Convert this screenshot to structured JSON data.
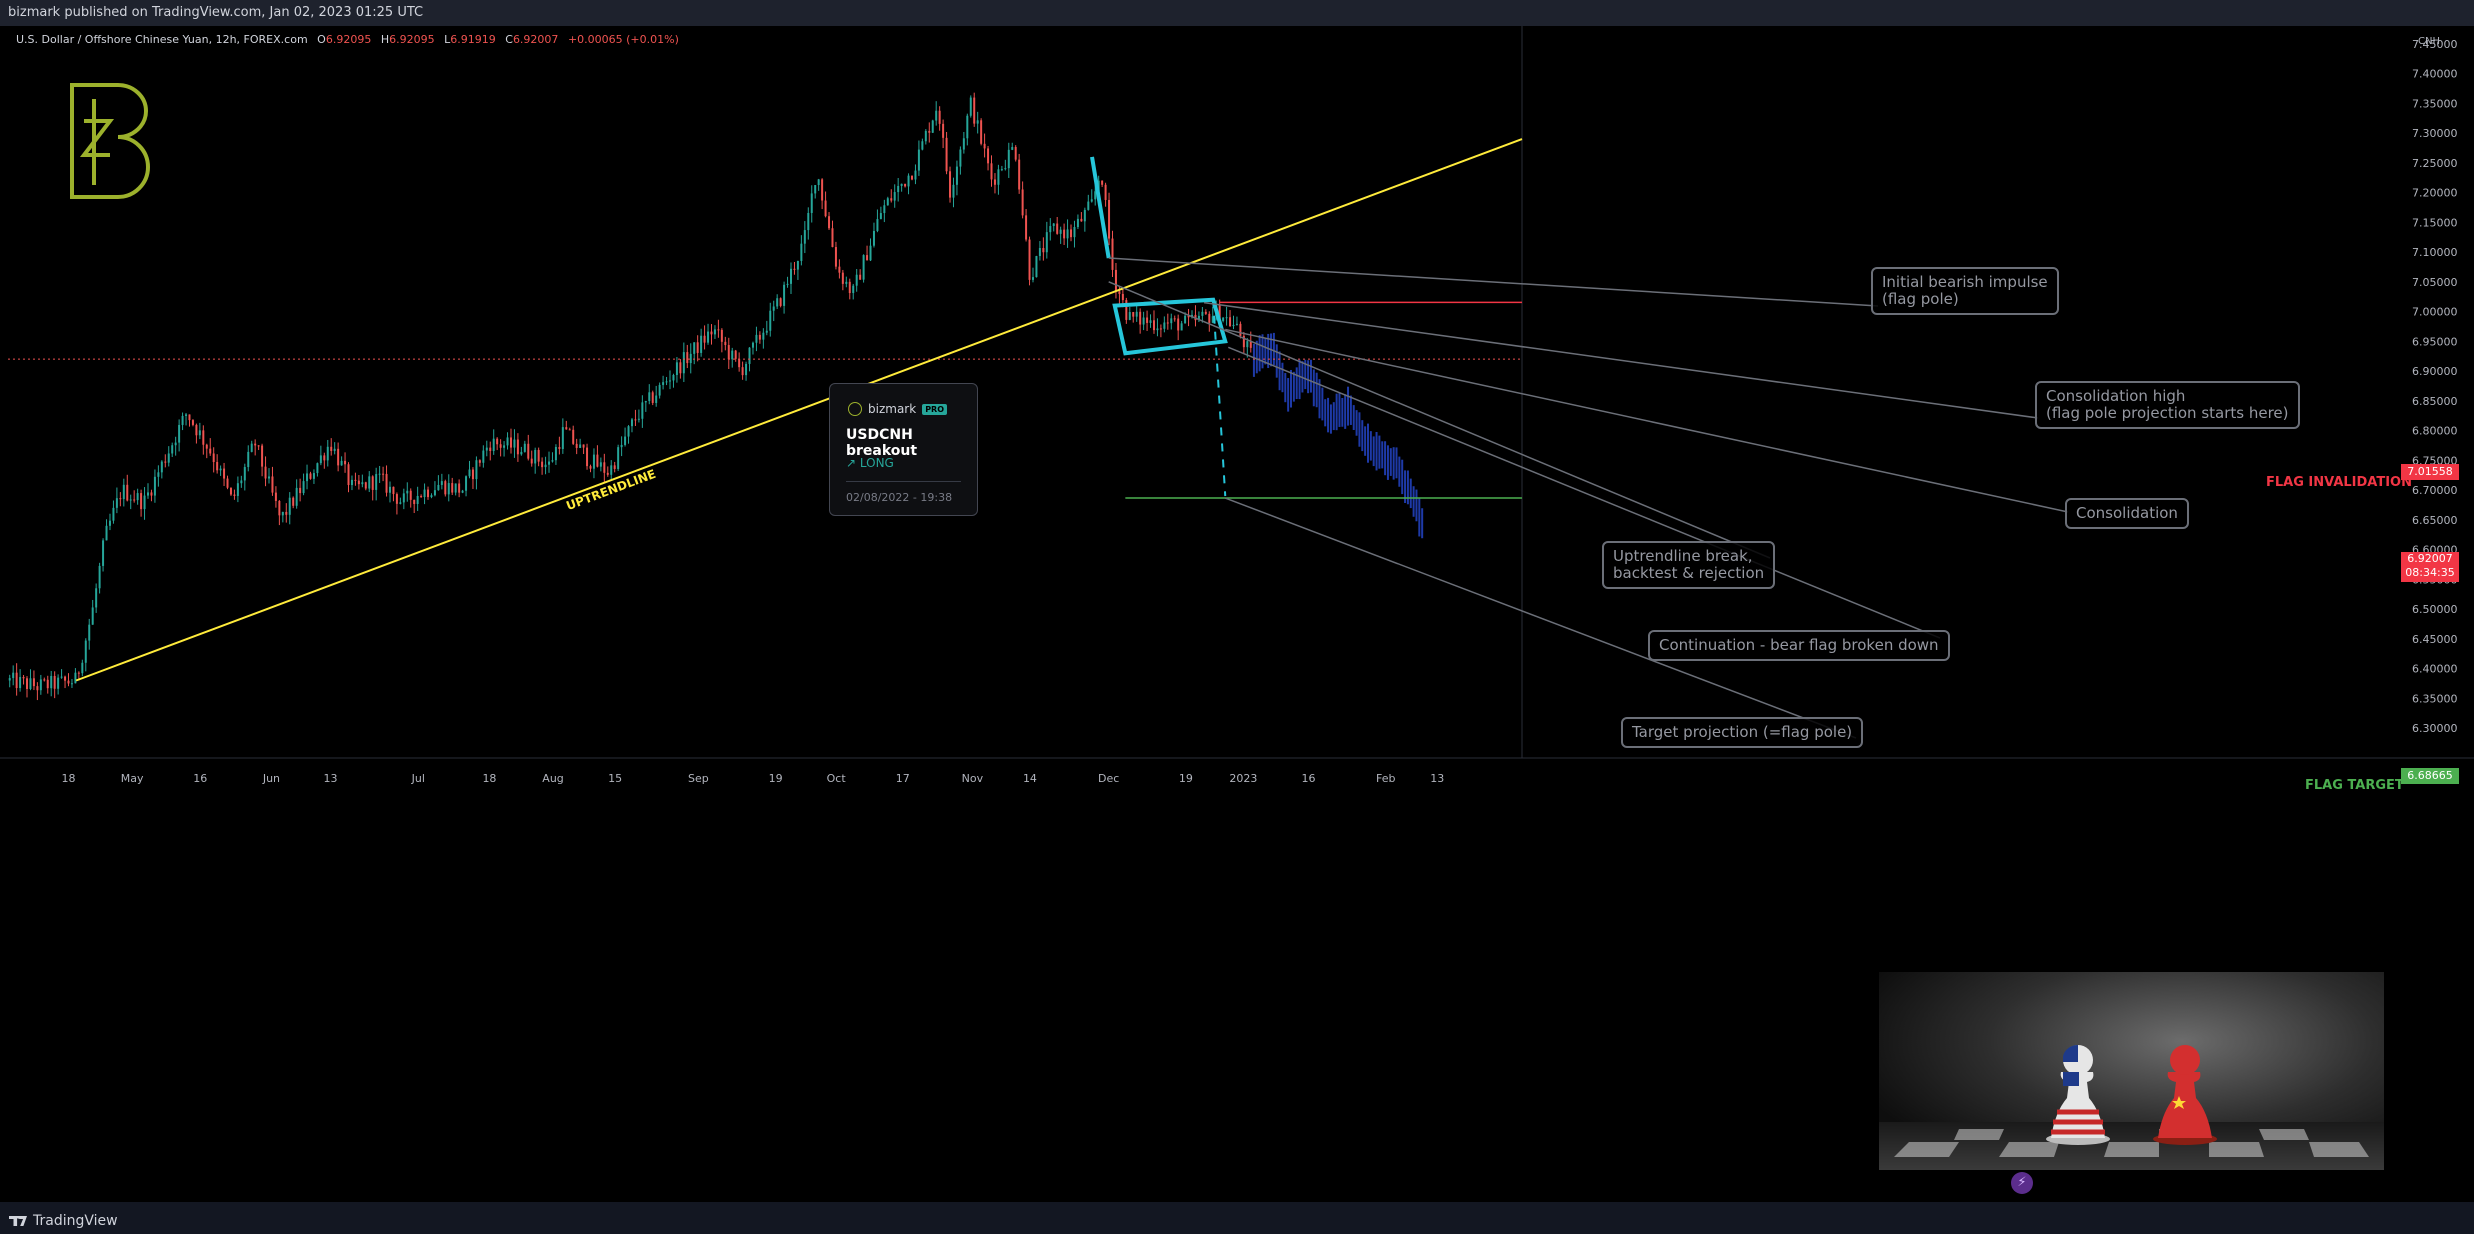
{
  "header": {
    "published": "bizmark published on TradingView.com, Jan 02, 2023 01:25 UTC"
  },
  "legend": {
    "symbol": "U.S. Dollar / Offshore Chinese Yuan, 12h, FOREX.com",
    "o_label": "O",
    "o": "6.92095",
    "h_label": "H",
    "h": "6.92095",
    "l_label": "L",
    "l": "6.91919",
    "c_label": "C",
    "c": "6.92007",
    "change": "+0.00065 (+0.01%)"
  },
  "colors": {
    "background": "#000000",
    "up": "#26a69a",
    "down": "#ef5350",
    "trendline": "#ffeb3b",
    "flag": "#26c6da",
    "invalidation": "#f23645",
    "target": "#4caf50",
    "projection_bars": "#1e3aa8",
    "logo": "#9cb12c",
    "annotation_text": "#9598a1"
  },
  "idea_card": {
    "author": "bizmark",
    "badge": "PRO",
    "title": "USDCNH breakout",
    "direction": "↗ LONG",
    "date": "02/08/2022 - 19:38"
  },
  "annotations": {
    "impulse": "Initial bearish impulse\n(flag pole)",
    "cons_high": "Consolidation high\n(flag pole projection starts here)",
    "consolidation": "Consolidation",
    "uptrend_break": "Uptrendline break,\nbacktest & rejection",
    "continuation": "Continuation - bear flag broken down",
    "target_proj": "Target projection (=flag pole)",
    "uptrendline": "UPTRENDLINE",
    "flag_invalidation": "FLAG INVALIDATION",
    "flag_target": "FLAG TARGET"
  },
  "price_tags": {
    "invalidation": "7.01558",
    "current": "6.92007",
    "countdown": "08:34:35",
    "target": "6.68665"
  },
  "footer": {
    "brand": "TradingView"
  },
  "chart_data": {
    "type": "candlestick",
    "symbol": "USDCNH",
    "interval": "12h",
    "currency_label": "CNH",
    "y_ticks": [
      7.45,
      7.4,
      7.35,
      7.3,
      7.25,
      7.2,
      7.15,
      7.1,
      7.05,
      7.0,
      6.95,
      6.9,
      6.85,
      6.8,
      6.75,
      6.7,
      6.65,
      6.6,
      6.55,
      6.5,
      6.45,
      6.4,
      6.35,
      6.3
    ],
    "ylim": [
      6.28,
      7.48
    ],
    "x_ticks": [
      {
        "t": 0.04,
        "label": "18"
      },
      {
        "t": 0.082,
        "label": "May"
      },
      {
        "t": 0.127,
        "label": "16"
      },
      {
        "t": 0.174,
        "label": "Jun"
      },
      {
        "t": 0.213,
        "label": "13"
      },
      {
        "t": 0.271,
        "label": "Jul"
      },
      {
        "t": 0.318,
        "label": "18"
      },
      {
        "t": 0.36,
        "label": "Aug"
      },
      {
        "t": 0.401,
        "label": "15"
      },
      {
        "t": 0.456,
        "label": "Sep"
      },
      {
        "t": 0.507,
        "label": "19"
      },
      {
        "t": 0.547,
        "label": "Oct"
      },
      {
        "t": 0.591,
        "label": "17"
      },
      {
        "t": 0.637,
        "label": "Nov"
      },
      {
        "t": 0.675,
        "label": "14"
      },
      {
        "t": 0.727,
        "label": "Dec"
      },
      {
        "t": 0.778,
        "label": "19"
      },
      {
        "t": 0.816,
        "label": "2023"
      },
      {
        "t": 0.859,
        "label": "16"
      },
      {
        "t": 0.91,
        "label": "Feb"
      },
      {
        "t": 0.944,
        "label": "13"
      }
    ],
    "price_path": [
      [
        0.0,
        6.38
      ],
      [
        0.02,
        6.37
      ],
      [
        0.045,
        6.38
      ],
      [
        0.056,
        6.5
      ],
      [
        0.064,
        6.62
      ],
      [
        0.075,
        6.7
      ],
      [
        0.09,
        6.68
      ],
      [
        0.103,
        6.75
      ],
      [
        0.118,
        6.83
      ],
      [
        0.135,
        6.76
      ],
      [
        0.148,
        6.68
      ],
      [
        0.163,
        6.78
      ],
      [
        0.18,
        6.65
      ],
      [
        0.198,
        6.72
      ],
      [
        0.213,
        6.78
      ],
      [
        0.228,
        6.7
      ],
      [
        0.245,
        6.72
      ],
      [
        0.26,
        6.68
      ],
      [
        0.285,
        6.71
      ],
      [
        0.3,
        6.7
      ],
      [
        0.318,
        6.78
      ],
      [
        0.34,
        6.77
      ],
      [
        0.357,
        6.74
      ],
      [
        0.367,
        6.8
      ],
      [
        0.384,
        6.75
      ],
      [
        0.397,
        6.73
      ],
      [
        0.414,
        6.82
      ],
      [
        0.44,
        6.9
      ],
      [
        0.466,
        6.97
      ],
      [
        0.484,
        6.9
      ],
      [
        0.51,
        7.02
      ],
      [
        0.526,
        7.12
      ],
      [
        0.534,
        7.24
      ],
      [
        0.548,
        7.07
      ],
      [
        0.558,
        7.03
      ],
      [
        0.577,
        7.17
      ],
      [
        0.598,
        7.24
      ],
      [
        0.614,
        7.35
      ],
      [
        0.622,
        7.2
      ],
      [
        0.636,
        7.35
      ],
      [
        0.65,
        7.22
      ],
      [
        0.665,
        7.28
      ],
      [
        0.675,
        7.06
      ],
      [
        0.69,
        7.14
      ],
      [
        0.702,
        7.13
      ],
      [
        0.716,
        7.18
      ],
      [
        0.722,
        7.24
      ],
      [
        0.73,
        7.06
      ],
      [
        0.74,
        6.99
      ],
      [
        0.76,
        6.98
      ],
      [
        0.78,
        6.98
      ],
      [
        0.8,
        7.0
      ],
      [
        0.812,
        6.97
      ],
      [
        0.822,
        6.92
      ]
    ],
    "projection_path": [
      [
        0.822,
        6.92
      ],
      [
        0.835,
        6.94
      ],
      [
        0.845,
        6.86
      ],
      [
        0.858,
        6.9
      ],
      [
        0.872,
        6.82
      ],
      [
        0.885,
        6.84
      ],
      [
        0.9,
        6.77
      ],
      [
        0.918,
        6.74
      ],
      [
        0.935,
        6.64
      ]
    ],
    "levels": {
      "flag_invalidation": 7.01558,
      "current_price": 6.92007,
      "flag_target": 6.68665
    },
    "uptrendline": {
      "from": [
        0.045,
        6.38
      ],
      "to": [
        1.0,
        7.29
      ]
    },
    "flag_pole": {
      "from": [
        0.716,
        7.26
      ],
      "to": [
        0.727,
        7.09
      ]
    },
    "flag_channel": {
      "top": [
        [
          0.731,
          7.01
        ],
        [
          0.796,
          7.02
        ]
      ],
      "bottom": [
        [
          0.738,
          6.93
        ],
        [
          0.804,
          6.95
        ]
      ]
    },
    "target_projection": {
      "from": [
        0.796,
        7.02
      ],
      "to": [
        0.804,
        6.69
      ]
    }
  }
}
